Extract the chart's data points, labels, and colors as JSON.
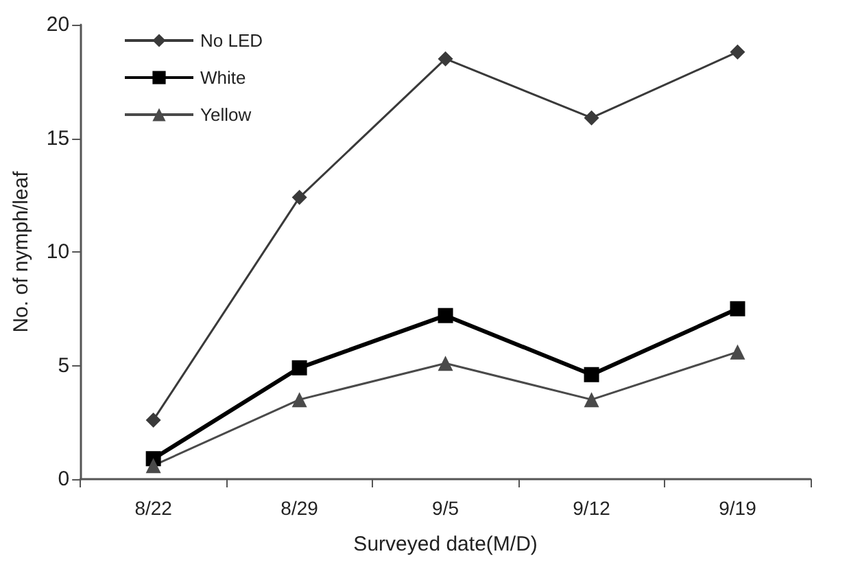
{
  "chart_data": {
    "type": "line",
    "xlabel": "Surveyed date(M/D)",
    "ylabel": "No. of nymph/leaf",
    "categories": [
      "8/22",
      "8/29",
      "9/5",
      "9/12",
      "9/19"
    ],
    "series": [
      {
        "name": "No LED",
        "color": "#3a3a3a",
        "marker": "diamond",
        "values": [
          2.6,
          12.4,
          18.5,
          15.9,
          18.8
        ]
      },
      {
        "name": "White",
        "color": "#000000",
        "marker": "square",
        "values": [
          0.9,
          4.9,
          7.2,
          4.6,
          7.5
        ]
      },
      {
        "name": "Yellow",
        "color": "#4a4a4a",
        "marker": "triangle",
        "values": [
          0.6,
          3.5,
          5.1,
          3.5,
          5.6
        ]
      }
    ],
    "ylim": [
      0,
      20
    ],
    "yticks": [
      0,
      5,
      10,
      15,
      20
    ],
    "grid": false,
    "legend": "top left",
    "line_style": "solid"
  }
}
